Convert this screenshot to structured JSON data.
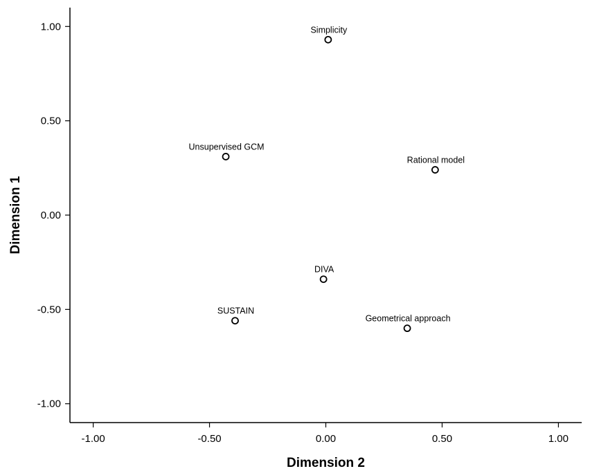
{
  "chart_data": {
    "type": "scatter",
    "xlabel": "Dimension 2",
    "ylabel": "Dimension 1",
    "xlim": [
      -1.1,
      1.1
    ],
    "ylim": [
      -1.1,
      1.1
    ],
    "x_ticks": [
      -1.0,
      -0.5,
      0.0,
      0.5,
      1.0
    ],
    "y_ticks": [
      -1.0,
      -0.5,
      0.0,
      0.5,
      1.0
    ],
    "x_tick_labels": [
      "-1.00",
      "-0.50",
      "0.00",
      "0.50",
      "1.00"
    ],
    "y_tick_labels": [
      "-1.00",
      "-0.50",
      "0.00",
      "0.50",
      "1.00"
    ],
    "grid": false,
    "points": [
      {
        "label": "Simplicity",
        "x": 0.01,
        "y": 0.93
      },
      {
        "label": "Unsupervised GCM",
        "x": -0.43,
        "y": 0.31
      },
      {
        "label": "Rational model",
        "x": 0.47,
        "y": 0.24
      },
      {
        "label": "DIVA",
        "x": -0.01,
        "y": -0.34
      },
      {
        "label": "SUSTAIN",
        "x": -0.39,
        "y": -0.56
      },
      {
        "label": "Geometrical approach",
        "x": 0.35,
        "y": -0.6
      }
    ]
  }
}
